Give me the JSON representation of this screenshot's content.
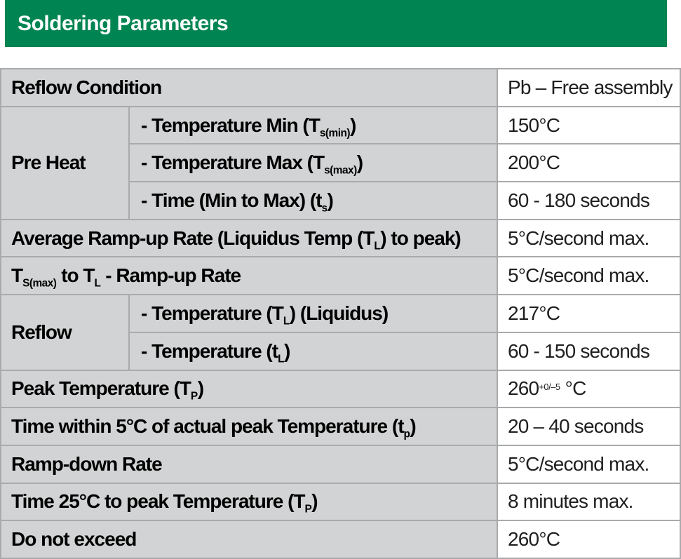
{
  "header": {
    "title": "Soldering Parameters"
  },
  "colors": {
    "accent_green": "#008552",
    "cell_gray": "#d2d3d4",
    "border_gray": "#a9aaac",
    "value_bg": "#ffffff",
    "label_text": "#000000",
    "value_text": "#1f1f1f"
  },
  "table": {
    "rows": [
      {
        "label": [
          {
            "t": "Reflow Condition"
          }
        ],
        "value": [
          {
            "t": "Pb – Free assembly"
          }
        ]
      },
      {
        "group": "Pre Heat",
        "label": [
          {
            "t": "- Temperature Min (T"
          },
          {
            "sub": "s(min)"
          },
          {
            "t": ")"
          }
        ],
        "value": [
          {
            "t": "150°C"
          }
        ]
      },
      {
        "label": [
          {
            "t": "- Temperature Max (T"
          },
          {
            "sub": "s(max)"
          },
          {
            "t": ")"
          }
        ],
        "value": [
          {
            "t": "200°C"
          }
        ]
      },
      {
        "label": [
          {
            "t": "- Time (Min to Max) (t"
          },
          {
            "sub": "s"
          },
          {
            "t": ")"
          }
        ],
        "value": [
          {
            "t": "60 - 180 seconds"
          }
        ]
      },
      {
        "label": [
          {
            "t": "Average Ramp-up Rate (Liquidus Temp (T"
          },
          {
            "sub": "L"
          },
          {
            "t": ") to peak)"
          }
        ],
        "value": [
          {
            "t": "5°C/second max."
          }
        ]
      },
      {
        "label": [
          {
            "t": "T"
          },
          {
            "sub": "S(max)"
          },
          {
            "t": " to T"
          },
          {
            "sub": "L"
          },
          {
            "t": " - Ramp-up Rate"
          }
        ],
        "value": [
          {
            "t": "5°C/second max."
          }
        ]
      },
      {
        "group": "Reflow",
        "label": [
          {
            "t": "- Temperature (T"
          },
          {
            "sub": "L"
          },
          {
            "t": ") (Liquidus)"
          }
        ],
        "value": [
          {
            "t": "217°C"
          }
        ]
      },
      {
        "label": [
          {
            "t": "- Temperature (t"
          },
          {
            "sub": "L"
          },
          {
            "t": ")"
          }
        ],
        "value": [
          {
            "t": "60 - 150 seconds"
          }
        ]
      },
      {
        "label": [
          {
            "t": "Peak Temperature (T"
          },
          {
            "sub": "P"
          },
          {
            "t": ")"
          }
        ],
        "value": [
          {
            "t": "260"
          },
          {
            "sup": "+0/–5"
          },
          {
            "t": " °C"
          }
        ]
      },
      {
        "label": [
          {
            "t": "Time within 5°C of actual peak Temperature (t"
          },
          {
            "sub": "p"
          },
          {
            "t": ")"
          }
        ],
        "value": [
          {
            "t": "20 – 40 seconds"
          }
        ]
      },
      {
        "label": [
          {
            "t": "Ramp-down Rate"
          }
        ],
        "value": [
          {
            "t": "5°C/second max."
          }
        ]
      },
      {
        "label": [
          {
            "t": "Time 25°C to peak Temperature (T"
          },
          {
            "sub": "P"
          },
          {
            "t": ")"
          }
        ],
        "value": [
          {
            "t": "8 minutes max."
          }
        ]
      },
      {
        "label": [
          {
            "t": "Do not exceed"
          }
        ],
        "value": [
          {
            "t": "260°C"
          }
        ]
      }
    ]
  }
}
